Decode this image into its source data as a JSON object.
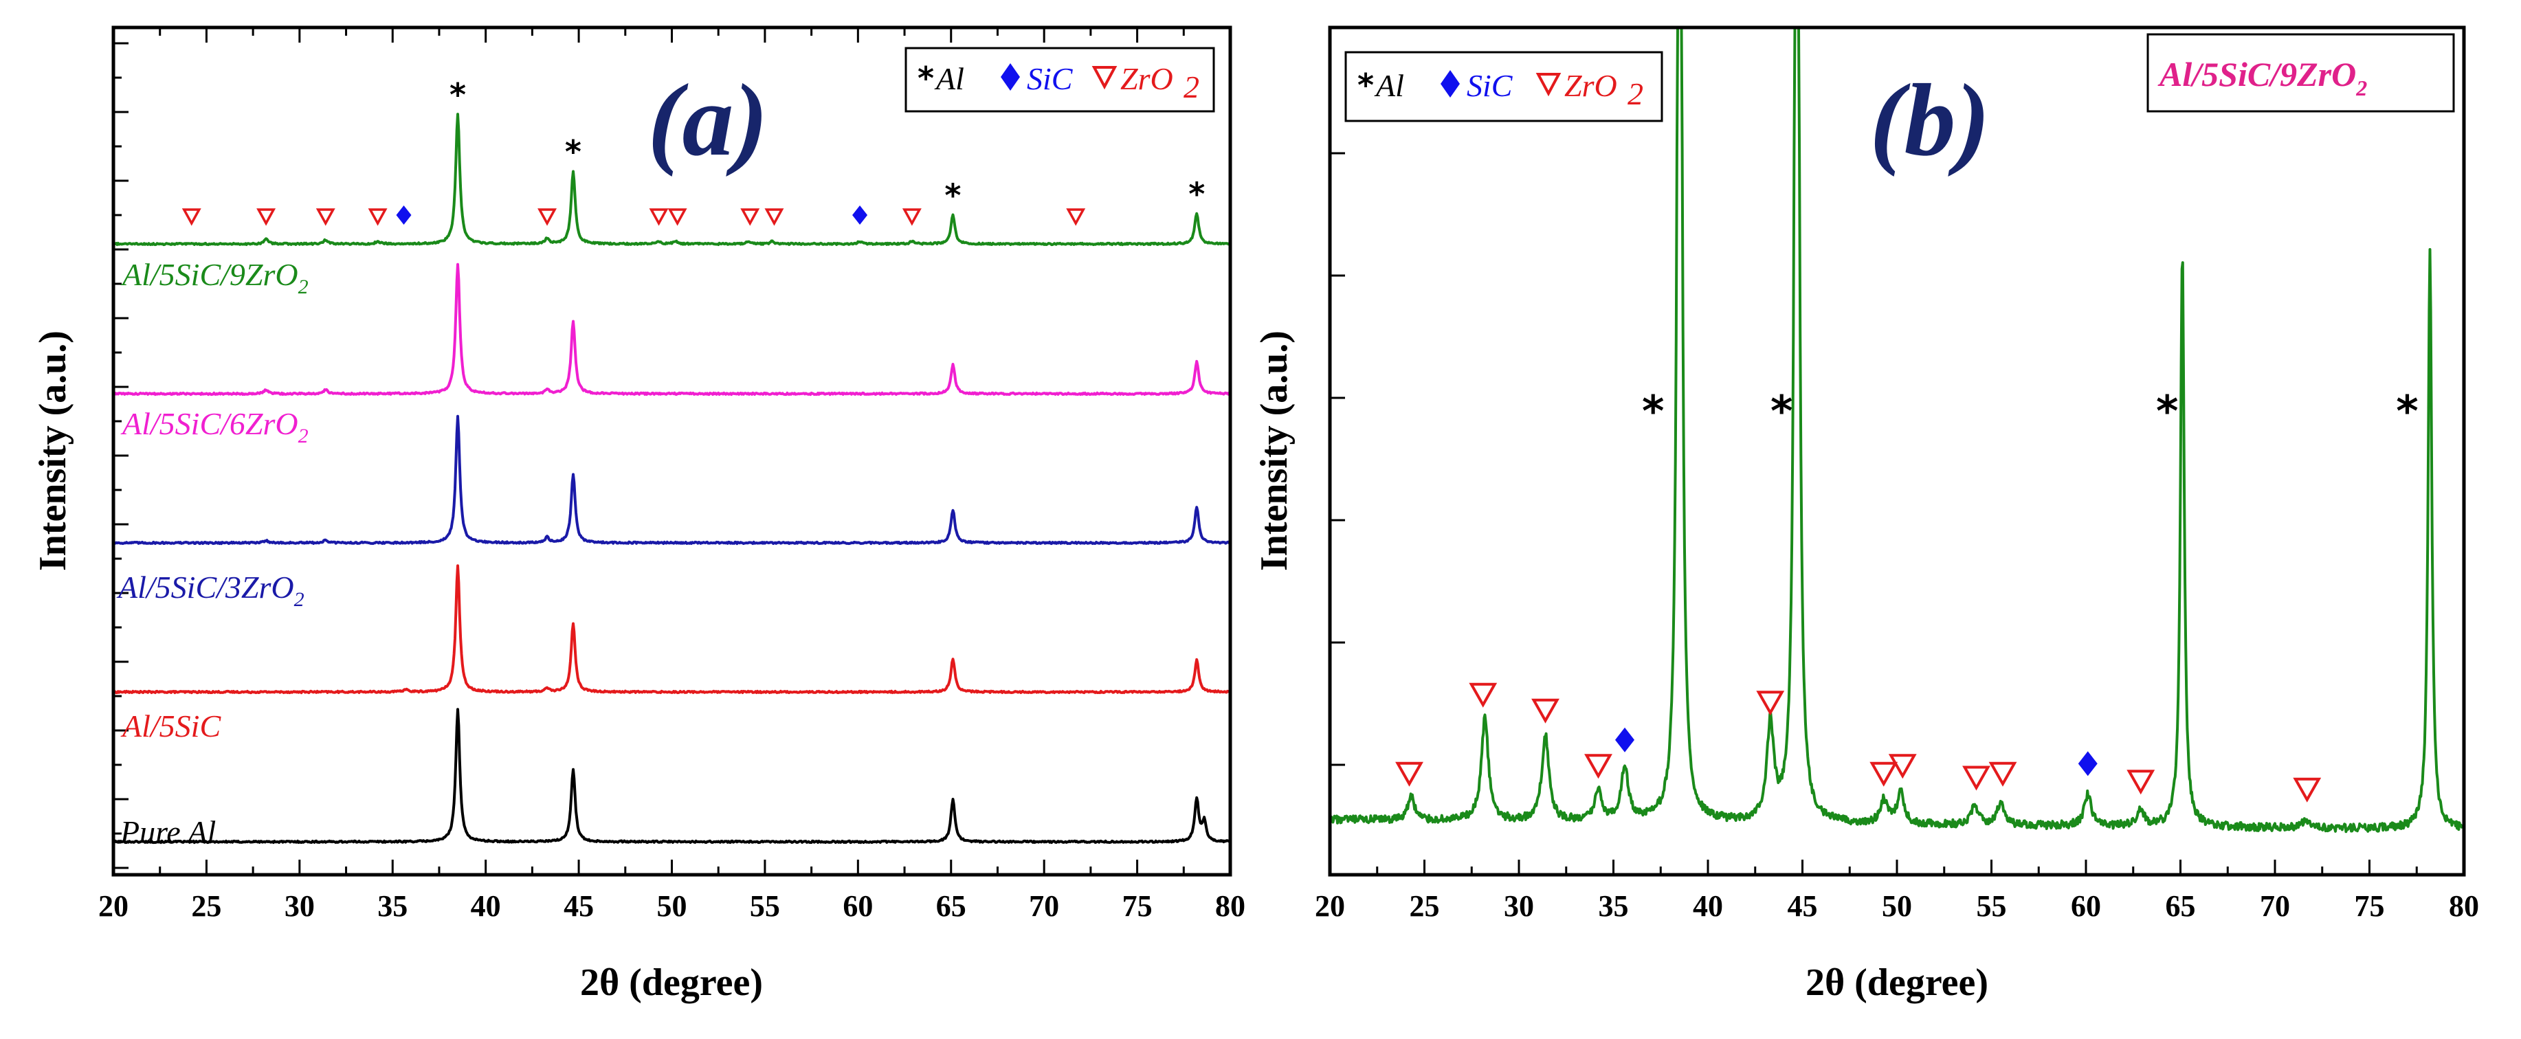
{
  "colors": {
    "pure_al": "#000000",
    "al_5sic": "#e41a1c",
    "al_5sic_3zro2": "#1a1aa8",
    "al_5sic_6zro2": "#f01fd0",
    "al_5sic_9zro2": "#1a8a1a",
    "zro2_marker": "#e41a1c",
    "sic_marker": "#1010ee",
    "panel_letter": "#17256b",
    "sample_title": "#e0218a"
  },
  "legend": {
    "al_symbol": "*",
    "al_text": "Al",
    "sic_text": "SiC",
    "zro2_text": "ZrO",
    "zro2_sub": "2"
  },
  "chart_data": [
    {
      "panel": "(a)",
      "type": "line",
      "title": "(a)",
      "xlabel": "2θ (degree)",
      "ylabel": "Intensity (a.u.)",
      "xlim": [
        20,
        80
      ],
      "xticks": [
        20,
        25,
        30,
        35,
        40,
        45,
        50,
        55,
        60,
        65,
        70,
        75,
        80
      ],
      "yticklabels": false,
      "legend_position": "top-right",
      "series": [
        {
          "name": "Pure Al",
          "name_main": "Pure Al",
          "name_sub": "",
          "peaks": [
            [
              38.5,
              1.0
            ],
            [
              44.7,
              0.55
            ],
            [
              65.1,
              0.32
            ],
            [
              78.2,
              0.32
            ],
            [
              78.6,
              0.15
            ]
          ]
        },
        {
          "name": "Al/5SiC",
          "name_main": "Al/5SiC",
          "name_sub": "",
          "peaks": [
            [
              38.5,
              0.95
            ],
            [
              44.7,
              0.52
            ],
            [
              65.1,
              0.25
            ],
            [
              78.2,
              0.24
            ],
            [
              43.3,
              0.03
            ],
            [
              35.7,
              0.02
            ]
          ]
        },
        {
          "name": "Al/5SiC/3ZrO2",
          "name_main": "Al/5SiC/3ZrO",
          "name_sub": "2",
          "peaks": [
            [
              38.5,
              0.95
            ],
            [
              44.7,
              0.52
            ],
            [
              65.1,
              0.25
            ],
            [
              78.2,
              0.27
            ],
            [
              43.3,
              0.04
            ],
            [
              28.2,
              0.02
            ],
            [
              31.4,
              0.02
            ]
          ]
        },
        {
          "name": "Al/5SiC/6ZrO2",
          "name_main": "Al/5SiC/6ZrO",
          "name_sub": "2",
          "peaks": [
            [
              38.5,
              0.98
            ],
            [
              44.7,
              0.55
            ],
            [
              65.1,
              0.22
            ],
            [
              78.2,
              0.24
            ],
            [
              28.2,
              0.03
            ],
            [
              31.4,
              0.03
            ],
            [
              43.3,
              0.03
            ]
          ]
        },
        {
          "name": "Al/5SiC/9ZrO2",
          "name_main": "Al/5SiC/9ZrO",
          "name_sub": "2",
          "peaks": [
            [
              38.5,
              0.98
            ],
            [
              44.7,
              0.55
            ],
            [
              65.1,
              0.22
            ],
            [
              78.2,
              0.23
            ],
            [
              28.2,
              0.04
            ],
            [
              31.4,
              0.03
            ],
            [
              34.2,
              0.02
            ],
            [
              43.3,
              0.04
            ],
            [
              49.3,
              0.02
            ],
            [
              50.2,
              0.02
            ],
            [
              54.1,
              0.02
            ],
            [
              55.4,
              0.02
            ],
            [
              60.1,
              0.02
            ],
            [
              62.9,
              0.02
            ]
          ]
        }
      ],
      "al_peak_marks": [
        38.5,
        44.7,
        65.1,
        78.2
      ],
      "zro2_marks": [
        24.2,
        28.2,
        31.4,
        34.2,
        43.3,
        49.3,
        50.3,
        54.2,
        55.5,
        62.9,
        71.7
      ],
      "sic_marks": [
        35.6,
        60.1
      ]
    },
    {
      "panel": "(b)",
      "type": "line",
      "title": "(b)",
      "sample_title_main": "Al/5SiC/9ZrO",
      "sample_title_sub": "2",
      "xlabel": "2θ (degree)",
      "ylabel": "Intensity (a.u.)",
      "xlim": [
        20,
        80
      ],
      "xticks": [
        20,
        25,
        30,
        35,
        40,
        45,
        50,
        55,
        60,
        65,
        70,
        75,
        80
      ],
      "yticklabels": false,
      "legend_position": "top-left",
      "series": [
        {
          "name": "Al/5SiC/9ZrO2",
          "baseline": 0.045,
          "peaks": [
            [
              24.3,
              0.03
            ],
            [
              28.2,
              0.13
            ],
            [
              31.4,
              0.11
            ],
            [
              34.2,
              0.04
            ],
            [
              35.6,
              0.07
            ],
            [
              38.5,
              2.0
            ],
            [
              43.3,
              0.12
            ],
            [
              44.7,
              2.0
            ],
            [
              49.3,
              0.03
            ],
            [
              50.2,
              0.04
            ],
            [
              54.1,
              0.025
            ],
            [
              55.5,
              0.03
            ],
            [
              60.1,
              0.04
            ],
            [
              62.9,
              0.02
            ],
            [
              65.1,
              0.73
            ],
            [
              71.6,
              0.01
            ],
            [
              78.2,
              0.73
            ]
          ]
        }
      ],
      "al_peak_marks": [
        37.1,
        43.9,
        64.3,
        77.0
      ],
      "zro2_marks": [
        24.2,
        28.1,
        31.4,
        34.2,
        43.3,
        49.3,
        50.3,
        54.2,
        55.6,
        62.9,
        71.7
      ],
      "sic_marks": [
        35.6,
        60.1
      ]
    }
  ]
}
